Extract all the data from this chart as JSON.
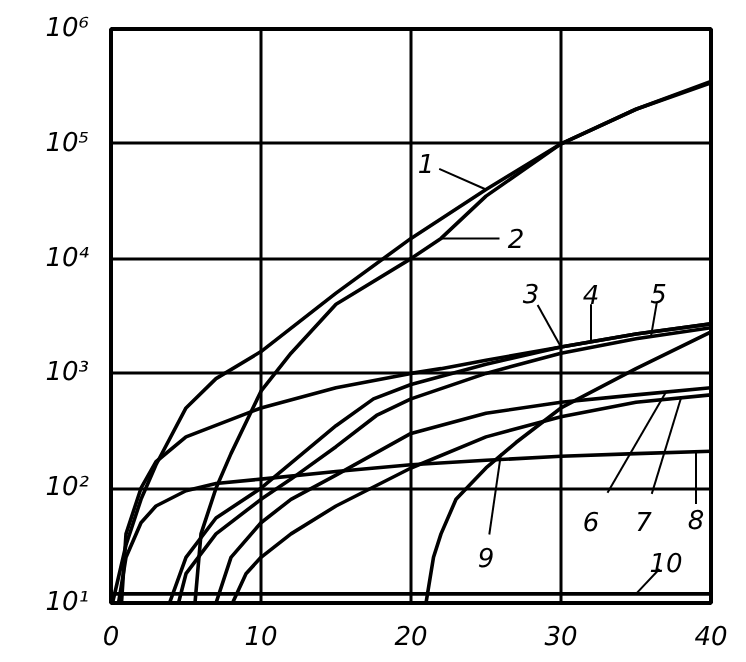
{
  "chart_data": {
    "type": "line",
    "log": true,
    "grid": true,
    "marker": "none",
    "line_style": "solid",
    "xlim": [
      0,
      40
    ],
    "xticks": [
      0,
      10,
      20,
      30,
      40
    ],
    "ylim": [
      10,
      1000000
    ],
    "yticks": [
      {
        "value": 10,
        "label": "10¹"
      },
      {
        "value": 100,
        "label": "10²"
      },
      {
        "value": 1000,
        "label": "10³"
      },
      {
        "value": 10000,
        "label": "10⁴"
      },
      {
        "value": 100000,
        "label": "10⁵"
      },
      {
        "value": 1000000,
        "label": "10⁶"
      }
    ],
    "series": [
      {
        "color": "#000000",
        "x": [
          0.1,
          1,
          2,
          3,
          5,
          7,
          10,
          15,
          20,
          25,
          30,
          35,
          40
        ],
        "values": [
          10,
          32,
          80,
          160,
          500,
          900,
          1550,
          5000,
          15000,
          40000,
          100000,
          200000,
          350000
        ]
      },
      {
        "color": "#000000",
        "x": [
          5.6,
          6,
          7,
          8,
          10,
          12,
          15,
          20,
          22,
          25,
          30,
          35,
          40
        ],
        "values": [
          10,
          40,
          100,
          200,
          700,
          1500,
          4000,
          10000,
          15000,
          35000,
          100000,
          200000,
          340000
        ]
      },
      {
        "color": "#000000",
        "x": [
          0.7,
          1,
          2,
          3,
          5,
          10,
          15,
          20,
          22,
          25,
          30,
          35,
          40
        ],
        "values": [
          10,
          40,
          100,
          170,
          280,
          500,
          750,
          1000,
          1100,
          1300,
          1700,
          2200,
          2700
        ]
      },
      {
        "color": "#000000",
        "x": [
          3.9,
          5,
          7,
          10,
          15,
          17.5,
          20,
          25,
          30,
          35,
          40
        ],
        "values": [
          10,
          25,
          55,
          100,
          350,
          600,
          800,
          1200,
          1700,
          2200,
          2700
        ]
      },
      {
        "color": "#000000",
        "x": [
          4.5,
          5,
          7,
          10,
          12,
          15,
          17.7,
          20,
          25,
          30,
          35,
          40
        ],
        "values": [
          10,
          18,
          40,
          80,
          120,
          230,
          430,
          600,
          1000,
          1500,
          2000,
          2500
        ]
      },
      {
        "color": "#000000",
        "x": [
          7,
          8,
          10,
          12,
          15,
          20,
          25,
          30,
          35,
          40
        ],
        "values": [
          10,
          25,
          50,
          80,
          130,
          300,
          450,
          560,
          650,
          750
        ]
      },
      {
        "color": "#000000",
        "x": [
          8.1,
          9,
          10,
          12,
          15,
          20,
          25,
          30,
          35,
          40
        ],
        "values": [
          10,
          18,
          25,
          40,
          70,
          150,
          280,
          420,
          560,
          650
        ]
      },
      {
        "color": "#000000",
        "x": [
          0.5,
          1,
          2,
          3,
          5,
          7,
          10,
          15,
          20,
          25,
          30,
          35,
          40
        ],
        "values": [
          10,
          25,
          50,
          70,
          95,
          110,
          120,
          140,
          160,
          175,
          190,
          200,
          210
        ]
      },
      {
        "color": "#000000",
        "x": [
          21,
          21.5,
          22,
          23,
          25,
          27,
          30,
          35,
          40
        ],
        "values": [
          10,
          25,
          40,
          80,
          150,
          250,
          500,
          1100,
          2300
        ]
      },
      {
        "color": "#000000",
        "x": [
          0,
          40
        ],
        "values": [
          12,
          12
        ]
      }
    ],
    "annotations": [
      {
        "text": "1",
        "x": 25,
        "y": 40000
      },
      {
        "text": "2",
        "x": 22,
        "y": 15000
      },
      {
        "text": "3",
        "x": 30,
        "y": 1700
      },
      {
        "text": "4",
        "x": 32,
        "y": 1900
      },
      {
        "text": "5",
        "x": 36,
        "y": 2100
      },
      {
        "text": "6",
        "x": 37,
        "y": 690
      },
      {
        "text": "7",
        "x": 38,
        "y": 610
      },
      {
        "text": "8",
        "x": 39,
        "y": 208
      },
      {
        "text": "9",
        "x": 26,
        "y": 200
      },
      {
        "text": "10",
        "x": 35,
        "y": 12
      }
    ]
  }
}
